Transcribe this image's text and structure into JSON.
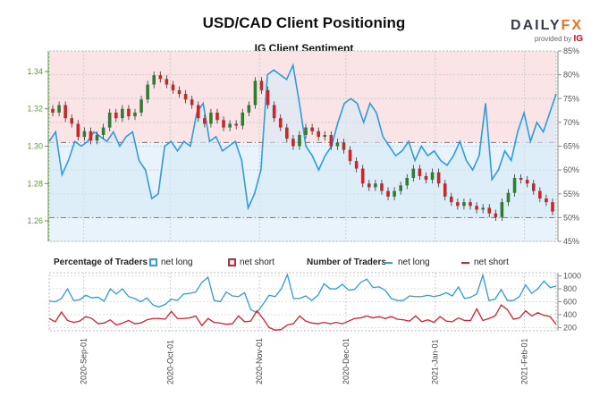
{
  "header": {
    "title": "USD/CAD Client Positioning",
    "subtitle": "IG Client Sentiment",
    "logo": "DAILYFX",
    "logo_main": "DAILY",
    "logo_accent": "FX",
    "provided_by": "provided by",
    "provider": "IG"
  },
  "legend": {
    "pct_title": "Percentage of Traders",
    "pct_long": "net long",
    "pct_short": "net short",
    "num_title": "Number of Traders",
    "num_long": "net long",
    "num_short": "net short"
  },
  "colors": {
    "long": "#2f9be0",
    "short": "#d8202f",
    "up": "#2e7d32",
    "down": "#c62828",
    "axis_left": "#5a9a3a"
  },
  "chart_data": [
    {
      "type": "candlestick+line",
      "title": "IG Client Sentiment",
      "ylabel_left": "USD/CAD",
      "ylim_left": [
        1.249,
        1.351
      ],
      "yticks_left": [
        "1.26",
        "1.28",
        "1.30",
        "1.32",
        "1.34"
      ],
      "ylim_right": [
        45,
        85
      ],
      "yticks_right": [
        "45%",
        "50%",
        "55%",
        "60%",
        "65%",
        "70%",
        "75%",
        "80%",
        "85%"
      ],
      "x_range": [
        "2020-08-20",
        "2021-02-12"
      ],
      "xticks": [
        "2020-Sep-01",
        "2020-Oct-01",
        "2020-Nov-01",
        "2020-Dec-01",
        "2021-Jan-01",
        "2021-Feb-01"
      ],
      "close": [
        1.318,
        1.322,
        1.315,
        1.312,
        1.305,
        1.308,
        1.303,
        1.306,
        1.31,
        1.318,
        1.315,
        1.32,
        1.316,
        1.318,
        1.325,
        1.333,
        1.338,
        1.336,
        1.333,
        1.33,
        1.328,
        1.325,
        1.322,
        1.315,
        1.312,
        1.318,
        1.314,
        1.31,
        1.312,
        1.311,
        1.318,
        1.322,
        1.335,
        1.33,
        1.322,
        1.315,
        1.31,
        1.304,
        1.3,
        1.306,
        1.31,
        1.308,
        1.305,
        1.306,
        1.3,
        1.302,
        1.298,
        1.292,
        1.288,
        1.28,
        1.278,
        1.28,
        1.276,
        1.273,
        1.276,
        1.279,
        1.283,
        1.288,
        1.284,
        1.282,
        1.286,
        1.28,
        1.273,
        1.27,
        1.268,
        1.27,
        1.268,
        1.266,
        1.267,
        1.264,
        1.262,
        1.27,
        1.275,
        1.283,
        1.282,
        1.28,
        1.276,
        1.272,
        1.27,
        1.265
      ],
      "pct_long": [
        66,
        68,
        59,
        62,
        66,
        65,
        66,
        68,
        67,
        66,
        68,
        65,
        67,
        68,
        62,
        60,
        54,
        55,
        65,
        66,
        64,
        66,
        65,
        72,
        74,
        66,
        67,
        64,
        65,
        66,
        62,
        52,
        55,
        60,
        80,
        81,
        80,
        79,
        82,
        74,
        65,
        63,
        60,
        63,
        65,
        70,
        74,
        75,
        74,
        70,
        74,
        72,
        67,
        65,
        63,
        64,
        66,
        62,
        65,
        63,
        64,
        62,
        61,
        63,
        66,
        62,
        60,
        63,
        74,
        58,
        60,
        64,
        62,
        68,
        72,
        66,
        70,
        68,
        72,
        76
      ],
      "ref_level_pct": 50,
      "ref_level_price": 1.302
    },
    {
      "type": "line",
      "title": "Number of Traders",
      "ylim": [
        150,
        1050
      ],
      "yticks": [
        "200",
        "400",
        "600",
        "800",
        "1000"
      ],
      "series": [
        {
          "name": "net long",
          "values": [
            610,
            600,
            650,
            800,
            620,
            630,
            700,
            660,
            670,
            610,
            800,
            720,
            800,
            680,
            650,
            600,
            660,
            550,
            520,
            560,
            640,
            620,
            720,
            730,
            750,
            900,
            980,
            620,
            600,
            750,
            690,
            680,
            740,
            480,
            430,
            560,
            700,
            680,
            800,
            1020,
            650,
            650,
            690,
            620,
            700,
            880,
            800,
            800,
            870,
            780,
            790,
            900,
            950,
            820,
            830,
            780,
            650,
            620,
            620,
            690,
            680,
            680,
            700,
            680,
            700,
            740,
            690,
            830,
            650,
            670,
            720,
            1010,
            620,
            640,
            790,
            620,
            620,
            680,
            860,
            730,
            800,
            920,
            820,
            840
          ]
        },
        {
          "name": "net short",
          "values": [
            340,
            290,
            440,
            310,
            280,
            300,
            370,
            340,
            260,
            270,
            320,
            240,
            270,
            310,
            260,
            270,
            320,
            340,
            340,
            330,
            450,
            340,
            340,
            350,
            380,
            230,
            340,
            280,
            270,
            250,
            260,
            380,
            290,
            300,
            460,
            340,
            200,
            160,
            170,
            240,
            260,
            380,
            300,
            270,
            260,
            280,
            260,
            280,
            260,
            300,
            340,
            350,
            380,
            350,
            370,
            340,
            370,
            330,
            320,
            300,
            380,
            290,
            320,
            280,
            370,
            300,
            290,
            350,
            310,
            310,
            490,
            310,
            340,
            380,
            550,
            480,
            330,
            350,
            460,
            380,
            430,
            390,
            370,
            250
          ]
        }
      ]
    }
  ]
}
